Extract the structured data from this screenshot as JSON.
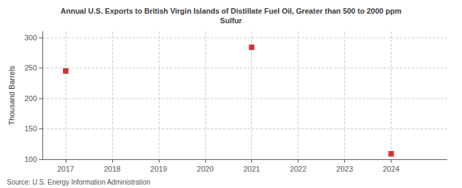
{
  "chart_data": {
    "type": "scatter",
    "title": "Annual U.S. Exports to British Virgin Islands of Distillate Fuel Oil, Greater than 500 to 2000 ppm\nSulfur",
    "ylabel": "Thousand Barrels",
    "source": "Source: U.S. Energy Information Administration",
    "x": [
      2017,
      2021,
      2024
    ],
    "values": [
      245,
      284,
      109
    ],
    "color": "#cc0000",
    "marker": "square",
    "xlim": [
      2016.5,
      2025.2
    ],
    "xticks": [
      2017,
      2018,
      2019,
      2020,
      2021,
      2022,
      2023,
      2024
    ],
    "ylim": [
      100,
      310
    ],
    "yticks": [
      100,
      150,
      200,
      250,
      300
    ],
    "grid": true
  }
}
